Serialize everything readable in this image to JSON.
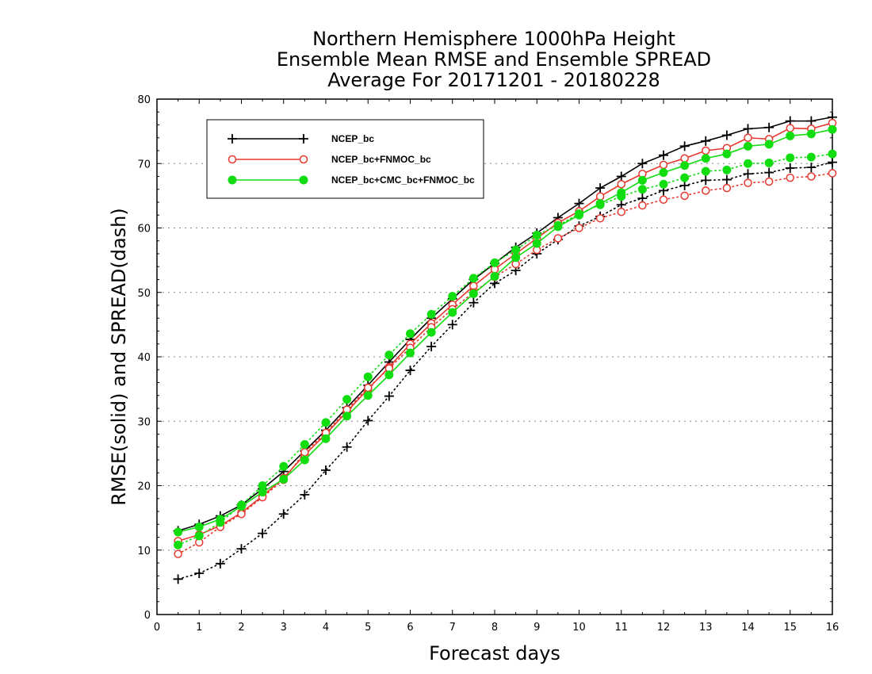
{
  "chart_data": {
    "type": "line",
    "title_lines": [
      "Northern Hemisphere 1000hPa Height",
      "Ensemble Mean RMSE and Ensemble SPREAD",
      "Average For 20171201 - 20180228"
    ],
    "xlabel": "Forecast days",
    "ylabel": "RMSE(solid) and SPREAD(dash)",
    "xlim": [
      0,
      16
    ],
    "ylim": [
      0,
      80
    ],
    "xticks": [
      0,
      1,
      2,
      3,
      4,
      5,
      6,
      7,
      8,
      9,
      10,
      11,
      12,
      13,
      14,
      15,
      16
    ],
    "yticks": [
      0,
      10,
      20,
      30,
      40,
      50,
      60,
      70,
      80
    ],
    "grid": "horizontal dotted",
    "legend_position": "top-left",
    "x": [
      0.5,
      1,
      1.5,
      2,
      2.5,
      3,
      3.5,
      4,
      4.5,
      5,
      5.5,
      6,
      6.5,
      7,
      7.5,
      8,
      8.5,
      9,
      9.5,
      10,
      10.5,
      11,
      11.5,
      12,
      12.5,
      13,
      13.5,
      14,
      14.5,
      15,
      15.5,
      16
    ],
    "series": [
      {
        "name": "NCEP_bc",
        "color": "#000000",
        "marker": "plus",
        "rmse": [
          13.0,
          14.0,
          15.3,
          17.0,
          19.5,
          22.2,
          25.4,
          28.6,
          32.1,
          35.6,
          39.2,
          42.7,
          46.0,
          49.0,
          52.0,
          54.5,
          57.0,
          59.2,
          61.6,
          63.8,
          66.2,
          68.0,
          70.0,
          71.3,
          72.7,
          73.5,
          74.4,
          75.4,
          75.6,
          76.6,
          76.6,
          77.2
        ],
        "spread": [
          5.5,
          6.4,
          7.9,
          10.2,
          12.6,
          15.6,
          18.6,
          22.4,
          26.0,
          30.1,
          33.9,
          37.9,
          41.6,
          45.0,
          48.4,
          51.4,
          53.4,
          56.0,
          58.2,
          60.3,
          61.8,
          63.6,
          64.6,
          65.8,
          66.6,
          67.4,
          67.5,
          68.4,
          68.6,
          69.3,
          69.4,
          70.2
        ]
      },
      {
        "name": "NCEP_bc+FNMOC_bc",
        "color": "#e8382e",
        "marker": "open-circle",
        "rmse": [
          11.4,
          12.4,
          13.8,
          15.8,
          18.4,
          21.2,
          24.8,
          28.0,
          31.5,
          35.0,
          38.4,
          42.0,
          45.2,
          48.1,
          51.0,
          53.6,
          56.0,
          58.4,
          60.8,
          62.6,
          64.9,
          66.8,
          68.4,
          69.8,
          70.8,
          72.0,
          72.4,
          74.0,
          73.8,
          75.5,
          75.4,
          76.3
        ],
        "spread": [
          9.4,
          11.2,
          13.6,
          15.6,
          18.2,
          20.9,
          25.2,
          28.2,
          31.8,
          35.2,
          38.2,
          41.4,
          44.6,
          47.4,
          50.0,
          52.4,
          54.4,
          56.6,
          58.4,
          60.0,
          61.5,
          62.5,
          63.5,
          64.4,
          65.0,
          65.8,
          66.2,
          67.0,
          67.2,
          67.8,
          68.0,
          68.5
        ]
      },
      {
        "name": "NCEP_bc+CMC_bc+FNMOC_bc",
        "color": "#11dd11",
        "marker": "filled-circle",
        "rmse": [
          12.8,
          13.6,
          14.8,
          16.8,
          19.0,
          21.0,
          24.0,
          27.3,
          30.8,
          34.0,
          37.2,
          40.6,
          43.8,
          46.9,
          49.8,
          52.5,
          55.4,
          57.6,
          60.2,
          62.0,
          63.8,
          65.5,
          67.4,
          68.6,
          69.7,
          70.8,
          71.5,
          72.7,
          73.0,
          74.3,
          74.6,
          75.3
        ],
        "spread": [
          10.8,
          12.2,
          14.3,
          17.0,
          20.0,
          23.0,
          26.4,
          29.8,
          33.4,
          36.9,
          40.3,
          43.6,
          46.6,
          49.4,
          52.2,
          54.6,
          56.6,
          58.9,
          60.4,
          62.2,
          63.6,
          64.9,
          66.0,
          66.8,
          67.8,
          68.8,
          69.0,
          70.0,
          70.1,
          70.9,
          71.0,
          71.5
        ]
      }
    ]
  }
}
